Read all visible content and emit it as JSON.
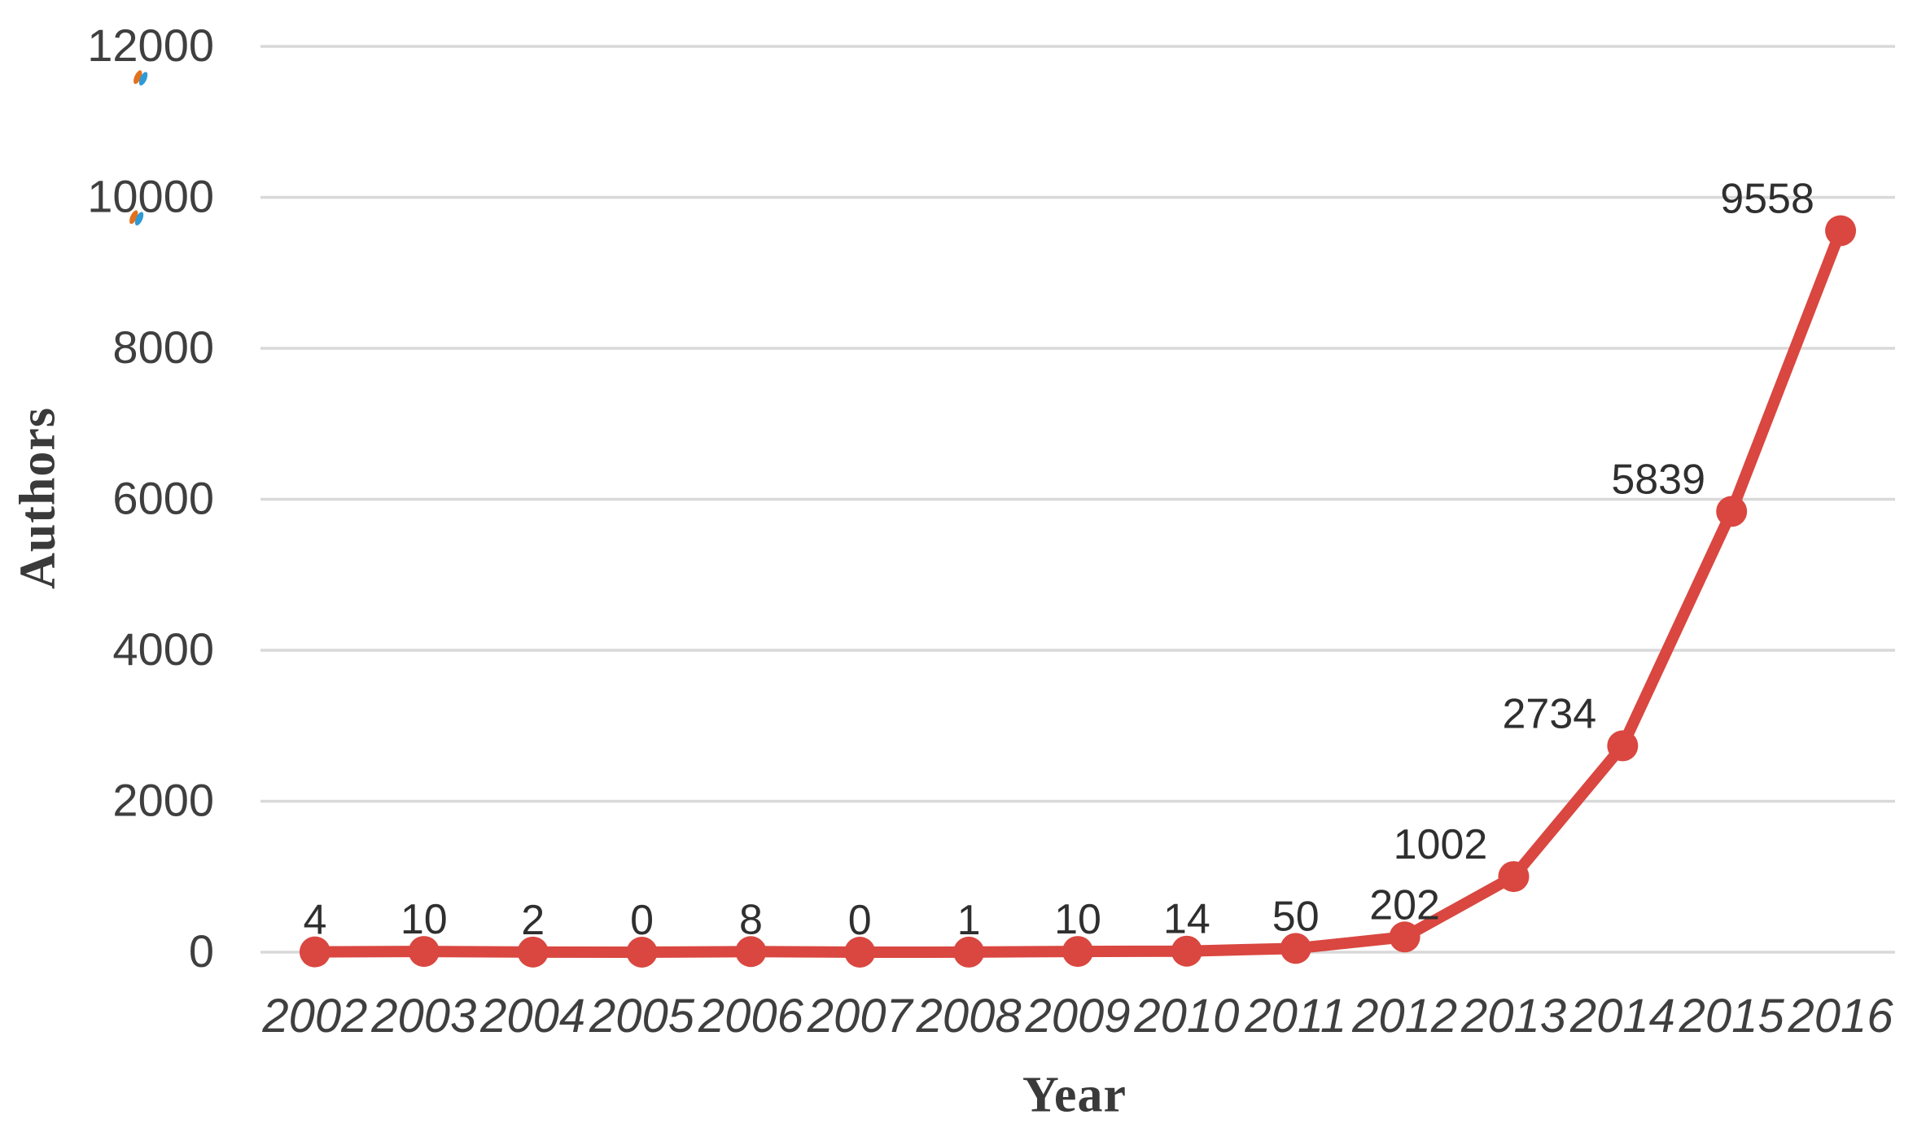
{
  "chart_data": {
    "type": "line",
    "title": "",
    "categories": [
      "2002",
      "2003",
      "2004",
      "2005",
      "2006",
      "2007",
      "2008",
      "2009",
      "2010",
      "2011",
      "2012",
      "2013",
      "2014",
      "2015",
      "2016"
    ],
    "series": [
      {
        "name": "Authors",
        "values": [
          4,
          10,
          2,
          0,
          8,
          0,
          1,
          10,
          14,
          50,
          202,
          1002,
          2734,
          5839,
          9558
        ]
      }
    ],
    "data_labels": [
      "4",
      "10",
      "2",
      "0",
      "8",
      "0",
      "1",
      "10",
      "14",
      "50",
      "202",
      "1002",
      "2734",
      "5839",
      "9558"
    ],
    "xlabel": "Year",
    "ylabel": "Authors",
    "ylim": [
      0,
      12000
    ],
    "yticks": [
      0,
      2000,
      4000,
      6000,
      8000,
      10000,
      12000
    ],
    "grid": true,
    "legend_position": "none",
    "line_color": "#d94740",
    "marker": "circle",
    "gridline_color": "#d9d9d9",
    "tick_text_color": "#3f3f3f",
    "data_label_color": "#2f2f2f",
    "artifact_colors": {
      "orange": "#e2711d",
      "blue": "#2e9bd6"
    }
  }
}
